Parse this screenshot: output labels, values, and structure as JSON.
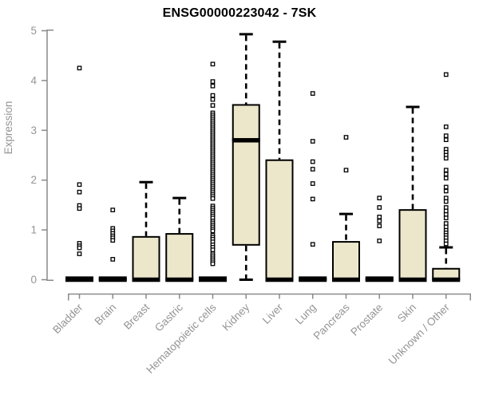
{
  "page": {
    "background": "#ffffff"
  },
  "chart_data": {
    "type": "box",
    "title": "ENSG00000223042 - 7SK",
    "ylabel": "Expression",
    "xlabel": "",
    "ylim": [
      0,
      5
    ],
    "yticks": [
      0,
      1,
      2,
      3,
      4,
      5
    ],
    "grid": false,
    "legend": "none",
    "colors": {
      "box_fill": "#ECE7CB",
      "box_stroke": "#000000",
      "median": "#000000",
      "whisker": "#000000",
      "outlier_stroke": "#000000",
      "outlier_fill": "#ffffff",
      "axis": "#8a8a8a",
      "tick_label": "#949494",
      "title": "#000000",
      "background": "#ffffff"
    },
    "categories": [
      "Bladder",
      "Brain",
      "Breast",
      "Gastric",
      "Hematopoietic cells",
      "Kidney",
      "Liver",
      "Lung",
      "Pancreas",
      "Prostate",
      "Skin",
      "Unknown / Other"
    ],
    "series": [
      {
        "name": "Bladder",
        "low": 0,
        "q1": 0,
        "median": 0,
        "q3": 0.05,
        "high": 0.05,
        "outliers": [
          4.25,
          1.91,
          1.76,
          1.49,
          1.43,
          0.73,
          0.68,
          0.64,
          0.52
        ]
      },
      {
        "name": "Brain",
        "low": 0,
        "q1": 0,
        "median": 0,
        "q3": 0.05,
        "high": 0.05,
        "outliers": [
          1.4,
          1.03,
          0.98,
          0.93,
          0.88,
          0.84,
          0.79,
          0.41
        ]
      },
      {
        "name": "Breast",
        "low": 0,
        "q1": 0,
        "median": 0,
        "q3": 0.86,
        "high": 1.96,
        "outliers": []
      },
      {
        "name": "Gastric",
        "low": 0,
        "q1": 0,
        "median": 0,
        "q3": 0.92,
        "high": 1.64,
        "outliers": []
      },
      {
        "name": "Hematopoietic cells",
        "low": 0,
        "q1": 0,
        "median": 0,
        "q3": 0.05,
        "high": 0.05,
        "outliers": [
          4.33,
          3.98,
          3.89,
          3.7,
          3.62,
          3.5,
          3.35,
          3.31,
          3.27,
          3.23,
          3.19,
          3.15,
          3.11,
          3.07,
          3.03,
          2.99,
          2.95,
          2.91,
          2.87,
          2.83,
          2.79,
          2.75,
          2.71,
          2.67,
          2.63,
          2.59,
          2.55,
          2.51,
          2.47,
          2.43,
          2.39,
          2.35,
          2.31,
          2.27,
          2.23,
          2.19,
          2.15,
          2.11,
          2.07,
          2.03,
          1.99,
          1.95,
          1.91,
          1.87,
          1.83,
          1.79,
          1.75,
          1.71,
          1.67,
          1.63,
          1.48,
          1.44,
          1.4,
          1.36,
          1.32,
          1.28,
          1.24,
          1.18,
          1.14,
          1.1,
          1.06,
          1.02,
          0.98,
          0.89,
          0.85,
          0.81,
          0.76,
          0.7,
          0.65,
          0.6,
          0.52,
          0.48,
          0.44,
          0.4,
          0.36,
          0.32
        ]
      },
      {
        "name": "Kidney",
        "low": 0,
        "q1": 0.7,
        "median": 2.8,
        "q3": 3.51,
        "high": 4.93,
        "outliers": []
      },
      {
        "name": "Liver",
        "low": 0,
        "q1": 0,
        "median": 0,
        "q3": 2.4,
        "high": 4.78,
        "outliers": []
      },
      {
        "name": "Lung",
        "low": 0,
        "q1": 0,
        "median": 0,
        "q3": 0.05,
        "high": 0.05,
        "outliers": [
          3.74,
          2.78,
          2.37,
          2.22,
          1.93,
          1.62,
          0.71
        ]
      },
      {
        "name": "Pancreas",
        "low": 0,
        "q1": 0,
        "median": 0,
        "q3": 0.76,
        "high": 1.32,
        "outliers": [
          2.86,
          2.2
        ]
      },
      {
        "name": "Prostate",
        "low": 0,
        "q1": 0,
        "median": 0,
        "q3": 0.05,
        "high": 0.05,
        "outliers": [
          1.64,
          1.45,
          1.26,
          1.18,
          1.08,
          0.78
        ]
      },
      {
        "name": "Skin",
        "low": 0,
        "q1": 0,
        "median": 0,
        "q3": 1.4,
        "high": 3.47,
        "outliers": []
      },
      {
        "name": "Unknown / Other",
        "low": 0,
        "q1": 0,
        "median": 0,
        "q3": 0.22,
        "high": 0.65,
        "outliers": [
          4.12,
          3.07,
          2.89,
          2.81,
          2.62,
          2.56,
          2.5,
          2.44,
          2.2,
          2.12,
          2.04,
          1.86,
          1.78,
          1.64,
          1.57,
          1.45,
          1.38,
          1.31,
          1.24,
          1.13,
          1.06,
          0.99,
          0.94,
          0.89,
          0.84,
          0.78,
          0.72
        ]
      }
    ]
  }
}
